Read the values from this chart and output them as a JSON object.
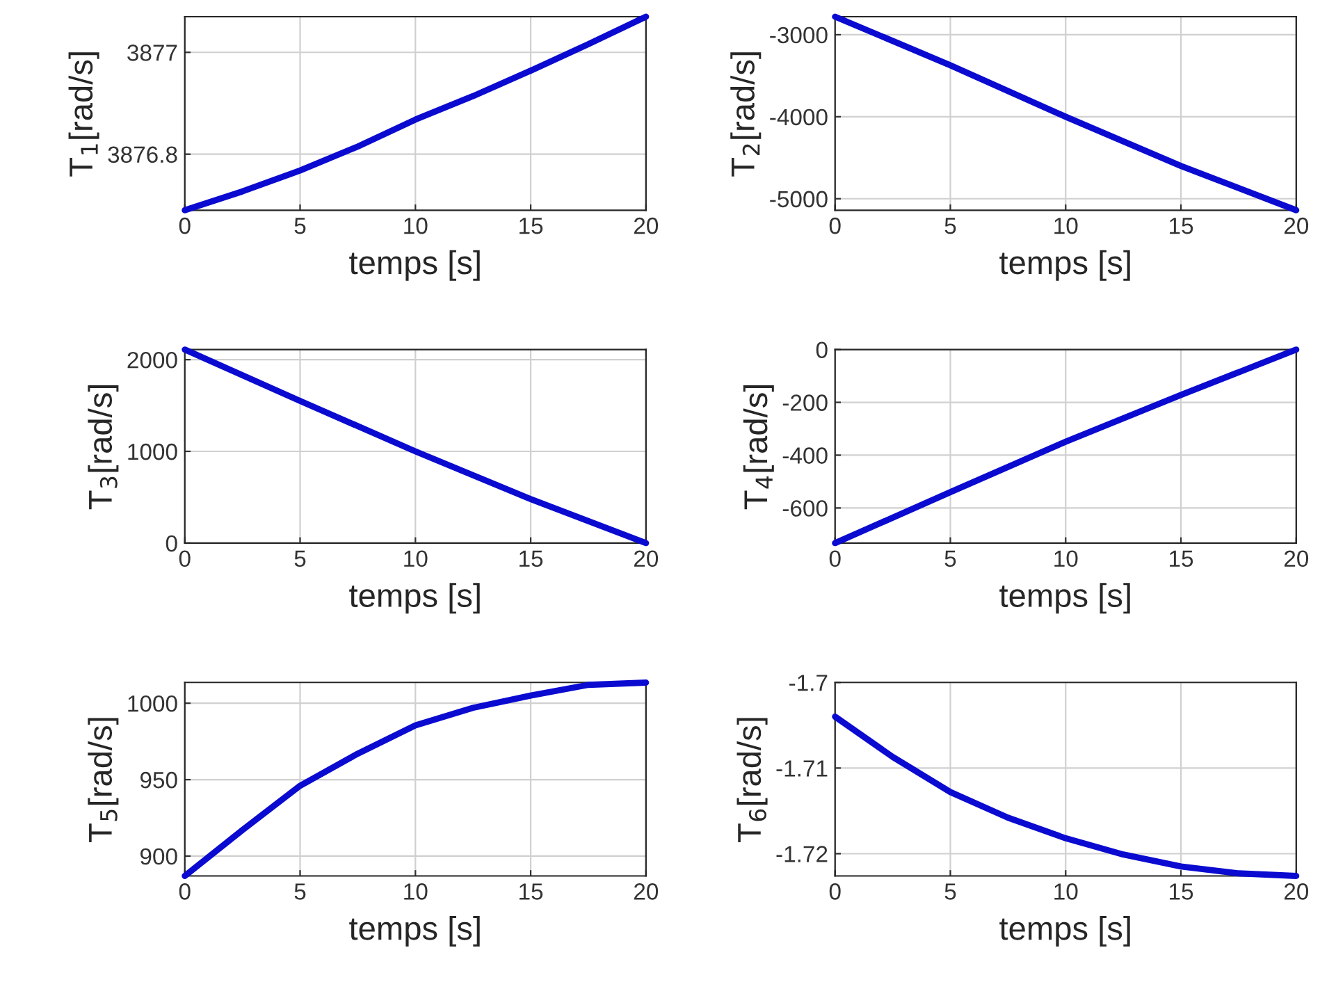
{
  "chart_data": [
    {
      "type": "line",
      "xlabel": "temps [s]",
      "ylabel": "T$_{1}$[rad/s]",
      "x": [
        0,
        2.5,
        5,
        7.5,
        10,
        12.5,
        15,
        17.5,
        20
      ],
      "series": [
        {
          "color": "#0a0ad0",
          "values": [
            3876.69,
            3876.727,
            3876.768,
            3876.815,
            3876.868,
            3876.914,
            3876.964,
            3877.016,
            3877.07
          ]
        }
      ],
      "xlim": [
        0,
        20
      ],
      "xticks": [
        0,
        5,
        10,
        15,
        20
      ],
      "ylim": [
        3876.69,
        3877.07
      ],
      "yticks": [
        3876.8,
        3877
      ],
      "grid": true
    },
    {
      "type": "line",
      "xlabel": "temps [s]",
      "ylabel": "T$_{2}$[rad/s]",
      "x": [
        0,
        5,
        10,
        15,
        20
      ],
      "series": [
        {
          "color": "#0a0ad0",
          "values": [
            -2780,
            -3372,
            -4000,
            -4600,
            -5140
          ]
        }
      ],
      "xlim": [
        0,
        20
      ],
      "xticks": [
        0,
        5,
        10,
        15,
        20
      ],
      "ylim": [
        -5140,
        -2780
      ],
      "yticks": [
        -5000,
        -4000,
        -3000
      ],
      "grid": true
    },
    {
      "type": "line",
      "xlabel": "temps [s]",
      "ylabel": "T$_{3}$[rad/s]",
      "x": [
        0,
        5,
        10,
        15,
        20
      ],
      "series": [
        {
          "color": "#0a0ad0",
          "values": [
            2110,
            1550,
            1000,
            480,
            0
          ]
        }
      ],
      "xlim": [
        0,
        20
      ],
      "xticks": [
        0,
        5,
        10,
        15,
        20
      ],
      "ylim": [
        0,
        2110
      ],
      "yticks": [
        0,
        1000,
        2000
      ],
      "grid": true
    },
    {
      "type": "line",
      "xlabel": "temps [s]",
      "ylabel": "T$_{4}$[rad/s]",
      "x": [
        0,
        5,
        10,
        15,
        20
      ],
      "series": [
        {
          "color": "#0a0ad0",
          "values": [
            -733,
            -540,
            -349,
            -172,
            0
          ]
        }
      ],
      "xlim": [
        0,
        20
      ],
      "xticks": [
        0,
        5,
        10,
        15,
        20
      ],
      "ylim": [
        -733,
        0
      ],
      "yticks": [
        -600,
        -400,
        -200,
        0
      ],
      "grid": true
    },
    {
      "type": "line",
      "xlabel": "temps [s]",
      "ylabel": "T$_{5}$[rad/s]",
      "x": [
        0,
        2.5,
        5,
        7.5,
        10,
        12.5,
        15,
        17.5,
        20
      ],
      "series": [
        {
          "color": "#0a0ad0",
          "values": [
            887,
            917,
            946,
            967,
            985.5,
            997,
            1005,
            1012,
            1013.5
          ]
        }
      ],
      "xlim": [
        0,
        20
      ],
      "xticks": [
        0,
        5,
        10,
        15,
        20
      ],
      "ylim": [
        887,
        1013.6
      ],
      "yticks": [
        900,
        950,
        1000
      ],
      "grid": true
    },
    {
      "type": "line",
      "xlabel": "temps [s]",
      "ylabel": "T$_{6}$[rad/s]",
      "x": [
        0,
        2.5,
        5,
        7.5,
        10,
        12.5,
        15,
        17.5,
        20
      ],
      "series": [
        {
          "color": "#0a0ad0",
          "values": [
            -1.704,
            -1.7087,
            -1.7128,
            -1.7158,
            -1.7182,
            -1.7201,
            -1.7215,
            -1.7223,
            -1.7226
          ]
        }
      ],
      "xlim": [
        0,
        20
      ],
      "xticks": [
        0,
        5,
        10,
        15,
        20
      ],
      "ylim": [
        -1.7226,
        -1.7
      ],
      "yticks": [
        -1.72,
        -1.71,
        -1.7
      ],
      "grid": true
    }
  ]
}
